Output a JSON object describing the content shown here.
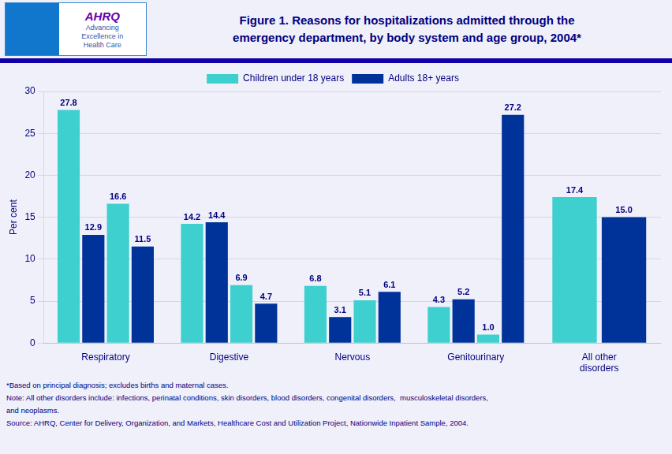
{
  "chart_data": {
    "type": "bar",
    "title": "Figure 1. Reasons for hospitalizations admitted through the\nemergency department, by body system and age group, 2004*",
    "annotations": [
      [
        "AHRQ",
        "Advancing",
        "Excellence in",
        "Health Care"
      ],
      [
        "*Based on principal diagnosis; excludes births and maternal cases.",
        "Note: All other disorders include: infections, perinatal conditions, skin disorders, blood disorders, congenital disorders,  musculoskeletal disorders,",
        "and neoplasms.",
        "Source: AHRQ, Center for Delivery, Organization, and Markets, Healthcare Cost and Utilization Project, Nationwide Inpatient Sample, 2004."
      ]
    ],
    "ylabel": "Per cent",
    "categories": [
      "Respiratory",
      "Digestive",
      "Nervous",
      "Genitourinary",
      "All other\ndisorders"
    ],
    "series": [
      {
        "name": "Children under 18 years",
        "color": "#3ECFCF",
        "values": [
          27.8,
          14.2,
          6.8,
          4.3,
          17.4
        ]
      },
      {
        "name": "Adults 18+ years",
        "color": "#003399",
        "values": [
          12.9,
          14.4,
          3.1,
          5.2,
          15.0
        ],
        "value_labels": [
          "12.9",
          "14.4",
          "3.1",
          "5.2",
          "15.0"
        ]
      },
      {
        "name": "Children under 18 years",
        "color": "#3ECFCF",
        "values": [
          16.6,
          6.9,
          5.1,
          1.0,
          null
        ],
        "value_labels": [
          "16.6",
          "6.9",
          "5.1",
          "1.0",
          null
        ]
      },
      {
        "name": "Adults 18+ years",
        "color": "#003399",
        "values": [
          11.5,
          4.7,
          6.1,
          27.2,
          null
        ]
      }
    ],
    "ylim": [
      0,
      30
    ],
    "yticks": [
      0,
      5,
      10,
      15,
      20,
      25,
      30
    ],
    "grid": true,
    "legend": "top",
    "data_labels": true
  }
}
